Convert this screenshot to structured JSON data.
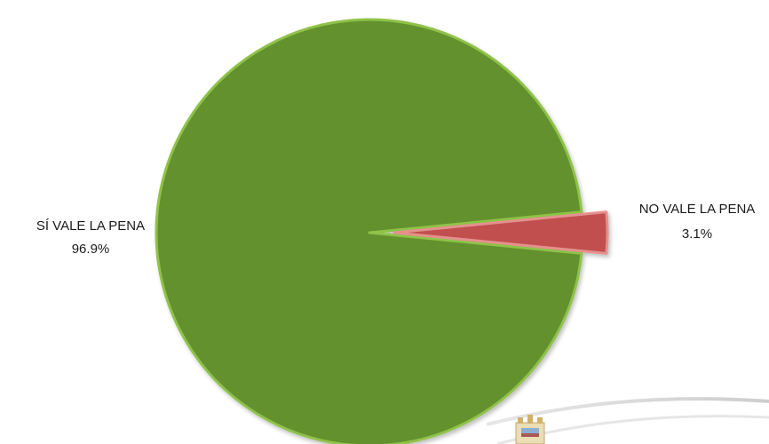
{
  "chart_data": {
    "type": "pie",
    "title": "",
    "slices": [
      {
        "label": "SÍ VALE LA PENA",
        "value": 96.9,
        "value_label": "96.9%",
        "color": "#63912f",
        "edge_color": "#8fc24a"
      },
      {
        "label": "NO VALE LA PENA",
        "value": 3.1,
        "value_label": "3.1%",
        "color": "#c0504d",
        "edge_color": "#e5908d"
      }
    ],
    "exploded_slice": "NO VALE LA PENA",
    "legend": "none"
  },
  "watermark": {
    "name": "coat-of-arms-seal"
  }
}
